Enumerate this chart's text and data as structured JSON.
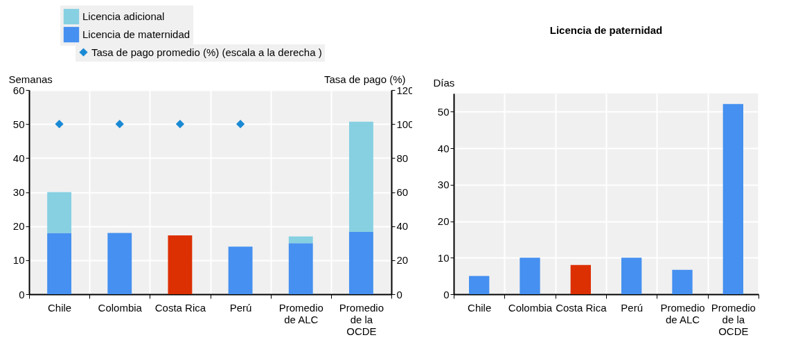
{
  "chart_data": [
    {
      "type": "bar",
      "stacked": true,
      "categories": [
        "Chile",
        "Colombia",
        "Costa Rica",
        "Perú",
        "Promedio de ALC",
        "Promedio de la OCDE"
      ],
      "ylabel": "Semanas",
      "y2label": "Tasa de pago (%)",
      "ylim": [
        0,
        60
      ],
      "yticks": [
        0,
        10,
        20,
        30,
        40,
        50,
        60
      ],
      "y2lim": [
        0,
        120
      ],
      "y2ticks": [
        0,
        20,
        40,
        60,
        80,
        100,
        120
      ],
      "grid": true,
      "legend": "top left",
      "marker": "diamond",
      "series": [
        {
          "name": "Licencia de maternidad",
          "color": "#4590f0",
          "colors": [
            "#4590f0",
            "#4590f0",
            "#dc2f02",
            "#4590f0",
            "#4590f0",
            "#4590f0"
          ],
          "values": [
            18,
            18,
            17.3,
            14,
            15,
            18.3
          ]
        },
        {
          "name": "Licencia adicional",
          "color": "#86d0e2",
          "values": [
            12,
            null,
            null,
            null,
            2,
            32.4
          ]
        },
        {
          "name": "Tasa de pago promedio (%) (escala a la derecha )",
          "type": "scatter",
          "axis": "y2",
          "color": "#1a8ad4",
          "values": [
            100,
            100,
            100,
            100,
            null,
            null
          ]
        }
      ]
    },
    {
      "type": "bar",
      "title": "Licencia de paternidad",
      "ylabel": "Días",
      "categories": [
        "Chile",
        "Colombia",
        "Costa Rica",
        "Perú",
        "Promedio de ALC",
        "Promedio de la OCDE"
      ],
      "ylim": [
        0,
        55
      ],
      "yticks": [
        0,
        10,
        20,
        30,
        40,
        50
      ],
      "grid": true,
      "colors": [
        "#4590f0",
        "#4590f0",
        "#dc2f02",
        "#4590f0",
        "#4590f0",
        "#4590f0"
      ],
      "values": [
        5,
        10,
        8,
        10,
        6.7,
        52.1
      ]
    }
  ]
}
